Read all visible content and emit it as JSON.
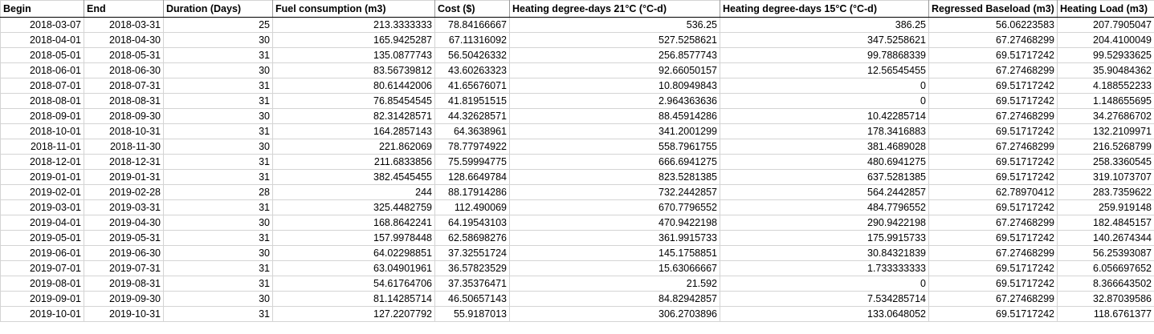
{
  "columns": [
    "Begin",
    "End",
    "Duration (Days)",
    "Fuel consumption (m3)",
    "Cost ($)",
    "Heating degree-days 21°C (°C-d)",
    "Heating degree-days 15°C (°C-d)",
    "Regressed Baseload (m3)",
    "Heating Load (m3)"
  ],
  "rows": [
    [
      "2018-03-07",
      "2018-03-31",
      "25",
      "213.3333333",
      "78.84166667",
      "536.25",
      "386.25",
      "56.06223583",
      "207.7905047"
    ],
    [
      "2018-04-01",
      "2018-04-30",
      "30",
      "165.9425287",
      "67.11316092",
      "527.5258621",
      "347.5258621",
      "67.27468299",
      "204.4100049"
    ],
    [
      "2018-05-01",
      "2018-05-31",
      "31",
      "135.0877743",
      "56.50426332",
      "256.8577743",
      "99.78868339",
      "69.51717242",
      "99.52933625"
    ],
    [
      "2018-06-01",
      "2018-06-30",
      "30",
      "83.56739812",
      "43.60263323",
      "92.66050157",
      "12.56545455",
      "67.27468299",
      "35.90484362"
    ],
    [
      "2018-07-01",
      "2018-07-31",
      "31",
      "80.61442006",
      "41.65676071",
      "10.80949843",
      "0",
      "69.51717242",
      "4.188552233"
    ],
    [
      "2018-08-01",
      "2018-08-31",
      "31",
      "76.85454545",
      "41.81951515",
      "2.964363636",
      "0",
      "69.51717242",
      "1.148655695"
    ],
    [
      "2018-09-01",
      "2018-09-30",
      "30",
      "82.31428571",
      "44.32628571",
      "88.45914286",
      "10.42285714",
      "67.27468299",
      "34.27686702"
    ],
    [
      "2018-10-01",
      "2018-10-31",
      "31",
      "164.2857143",
      "64.3638961",
      "341.2001299",
      "178.3416883",
      "69.51717242",
      "132.2109971"
    ],
    [
      "2018-11-01",
      "2018-11-30",
      "30",
      "221.862069",
      "78.77974922",
      "558.7961755",
      "381.4689028",
      "67.27468299",
      "216.5268799"
    ],
    [
      "2018-12-01",
      "2018-12-31",
      "31",
      "211.6833856",
      "75.59994775",
      "666.6941275",
      "480.6941275",
      "69.51717242",
      "258.3360545"
    ],
    [
      "2019-01-01",
      "2019-01-31",
      "31",
      "382.4545455",
      "128.6649784",
      "823.5281385",
      "637.5281385",
      "69.51717242",
      "319.1073707"
    ],
    [
      "2019-02-01",
      "2019-02-28",
      "28",
      "244",
      "88.17914286",
      "732.2442857",
      "564.2442857",
      "62.78970412",
      "283.7359622"
    ],
    [
      "2019-03-01",
      "2019-03-31",
      "31",
      "325.4482759",
      "112.490069",
      "670.7796552",
      "484.7796552",
      "69.51717242",
      "259.919148"
    ],
    [
      "2019-04-01",
      "2019-04-30",
      "30",
      "168.8642241",
      "64.19543103",
      "470.9422198",
      "290.9422198",
      "67.27468299",
      "182.4845157"
    ],
    [
      "2019-05-01",
      "2019-05-31",
      "31",
      "157.9978448",
      "62.58698276",
      "361.9915733",
      "175.9915733",
      "69.51717242",
      "140.2674344"
    ],
    [
      "2019-06-01",
      "2019-06-30",
      "30",
      "64.02298851",
      "37.32551724",
      "145.1758851",
      "30.84321839",
      "67.27468299",
      "56.25393087"
    ],
    [
      "2019-07-01",
      "2019-07-31",
      "31",
      "63.04901961",
      "36.57823529",
      "15.63066667",
      "1.733333333",
      "69.51717242",
      "6.056697652"
    ],
    [
      "2019-08-01",
      "2019-08-31",
      "31",
      "54.61764706",
      "37.35376471",
      "21.592",
      "0",
      "69.51717242",
      "8.366643502"
    ],
    [
      "2019-09-01",
      "2019-09-30",
      "30",
      "81.14285714",
      "46.50657143",
      "84.82942857",
      "7.534285714",
      "67.27468299",
      "32.87039586"
    ],
    [
      "2019-10-01",
      "2019-10-31",
      "31",
      "127.2207792",
      "55.9187013",
      "306.2703896",
      "133.0648052",
      "69.51717242",
      "118.6761377"
    ]
  ]
}
